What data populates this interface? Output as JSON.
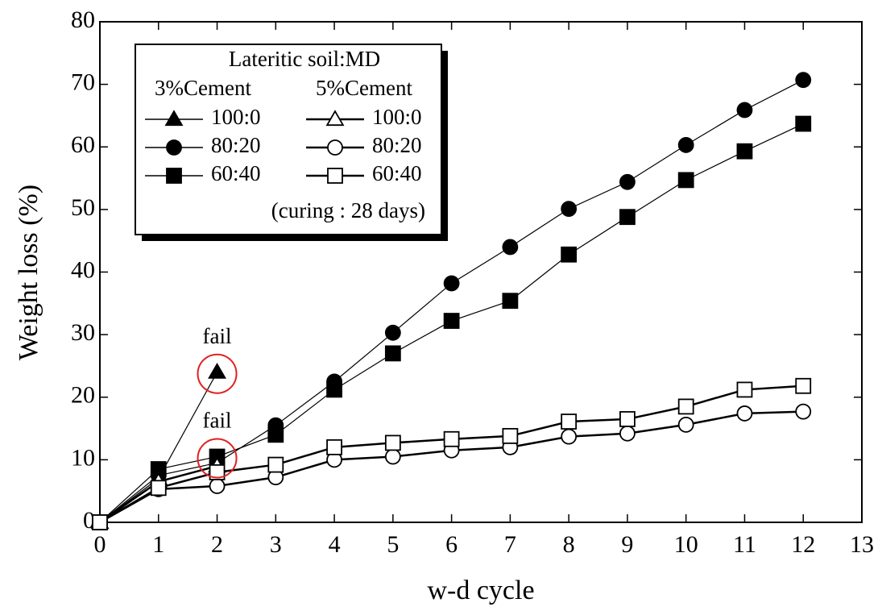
{
  "chart_data": {
    "type": "line",
    "x_label": "w-d cycle",
    "y_label": "Weight loss (%)",
    "x": [
      0,
      1,
      2,
      3,
      4,
      5,
      6,
      7,
      8,
      9,
      10,
      11,
      12
    ],
    "xlim": [
      0,
      13
    ],
    "xticks": [
      0,
      1,
      2,
      3,
      4,
      5,
      6,
      7,
      8,
      9,
      10,
      11,
      12,
      13
    ],
    "ylim": [
      0,
      80
    ],
    "yticks": [
      0,
      10,
      20,
      30,
      40,
      50,
      60,
      70,
      80
    ],
    "legend_title": "Lateritic soil:MD",
    "legend_groups": [
      "3%Cement",
      "5%Cement"
    ],
    "note": "(curing : 28 days)",
    "annotations": [
      "fail",
      "fail"
    ],
    "series": [
      {
        "name": "100:0",
        "group": 0,
        "marker": "triangle",
        "filled": true,
        "color": "#000",
        "values": [
          0,
          7,
          24,
          null,
          null,
          null,
          null,
          null,
          null,
          null,
          null,
          null,
          null
        ]
      },
      {
        "name": "80:20",
        "group": 0,
        "marker": "circle",
        "filled": true,
        "color": "#000",
        "values": [
          0,
          7.5,
          9.5,
          15.5,
          22.5,
          30.3,
          38.2,
          44,
          50.1,
          54.4,
          60.3,
          65.9,
          70.7
        ]
      },
      {
        "name": "60:40",
        "group": 0,
        "marker": "square",
        "filled": true,
        "color": "#000",
        "values": [
          0,
          8.5,
          10.5,
          14,
          21.2,
          27,
          32.2,
          35.4,
          42.8,
          48.8,
          54.7,
          59.3,
          63.7
        ]
      },
      {
        "name": "100:0",
        "group": 1,
        "marker": "triangle",
        "filled": false,
        "color": "#000",
        "values": [
          0,
          6.5,
          9,
          null,
          null,
          null,
          null,
          null,
          null,
          null,
          null,
          null,
          null
        ]
      },
      {
        "name": "80:20",
        "group": 1,
        "marker": "circle",
        "filled": false,
        "color": "#000",
        "values": [
          0,
          5.3,
          5.8,
          7.2,
          10,
          10.5,
          11.5,
          12,
          13.7,
          14.2,
          15.6,
          17.4,
          17.7
        ]
      },
      {
        "name": "60:40",
        "group": 1,
        "marker": "square",
        "filled": false,
        "color": "#000",
        "values": [
          0,
          5.5,
          8,
          9.2,
          12,
          12.7,
          13.3,
          13.8,
          16.1,
          16.5,
          18.5,
          21.2,
          21.8
        ]
      }
    ]
  }
}
